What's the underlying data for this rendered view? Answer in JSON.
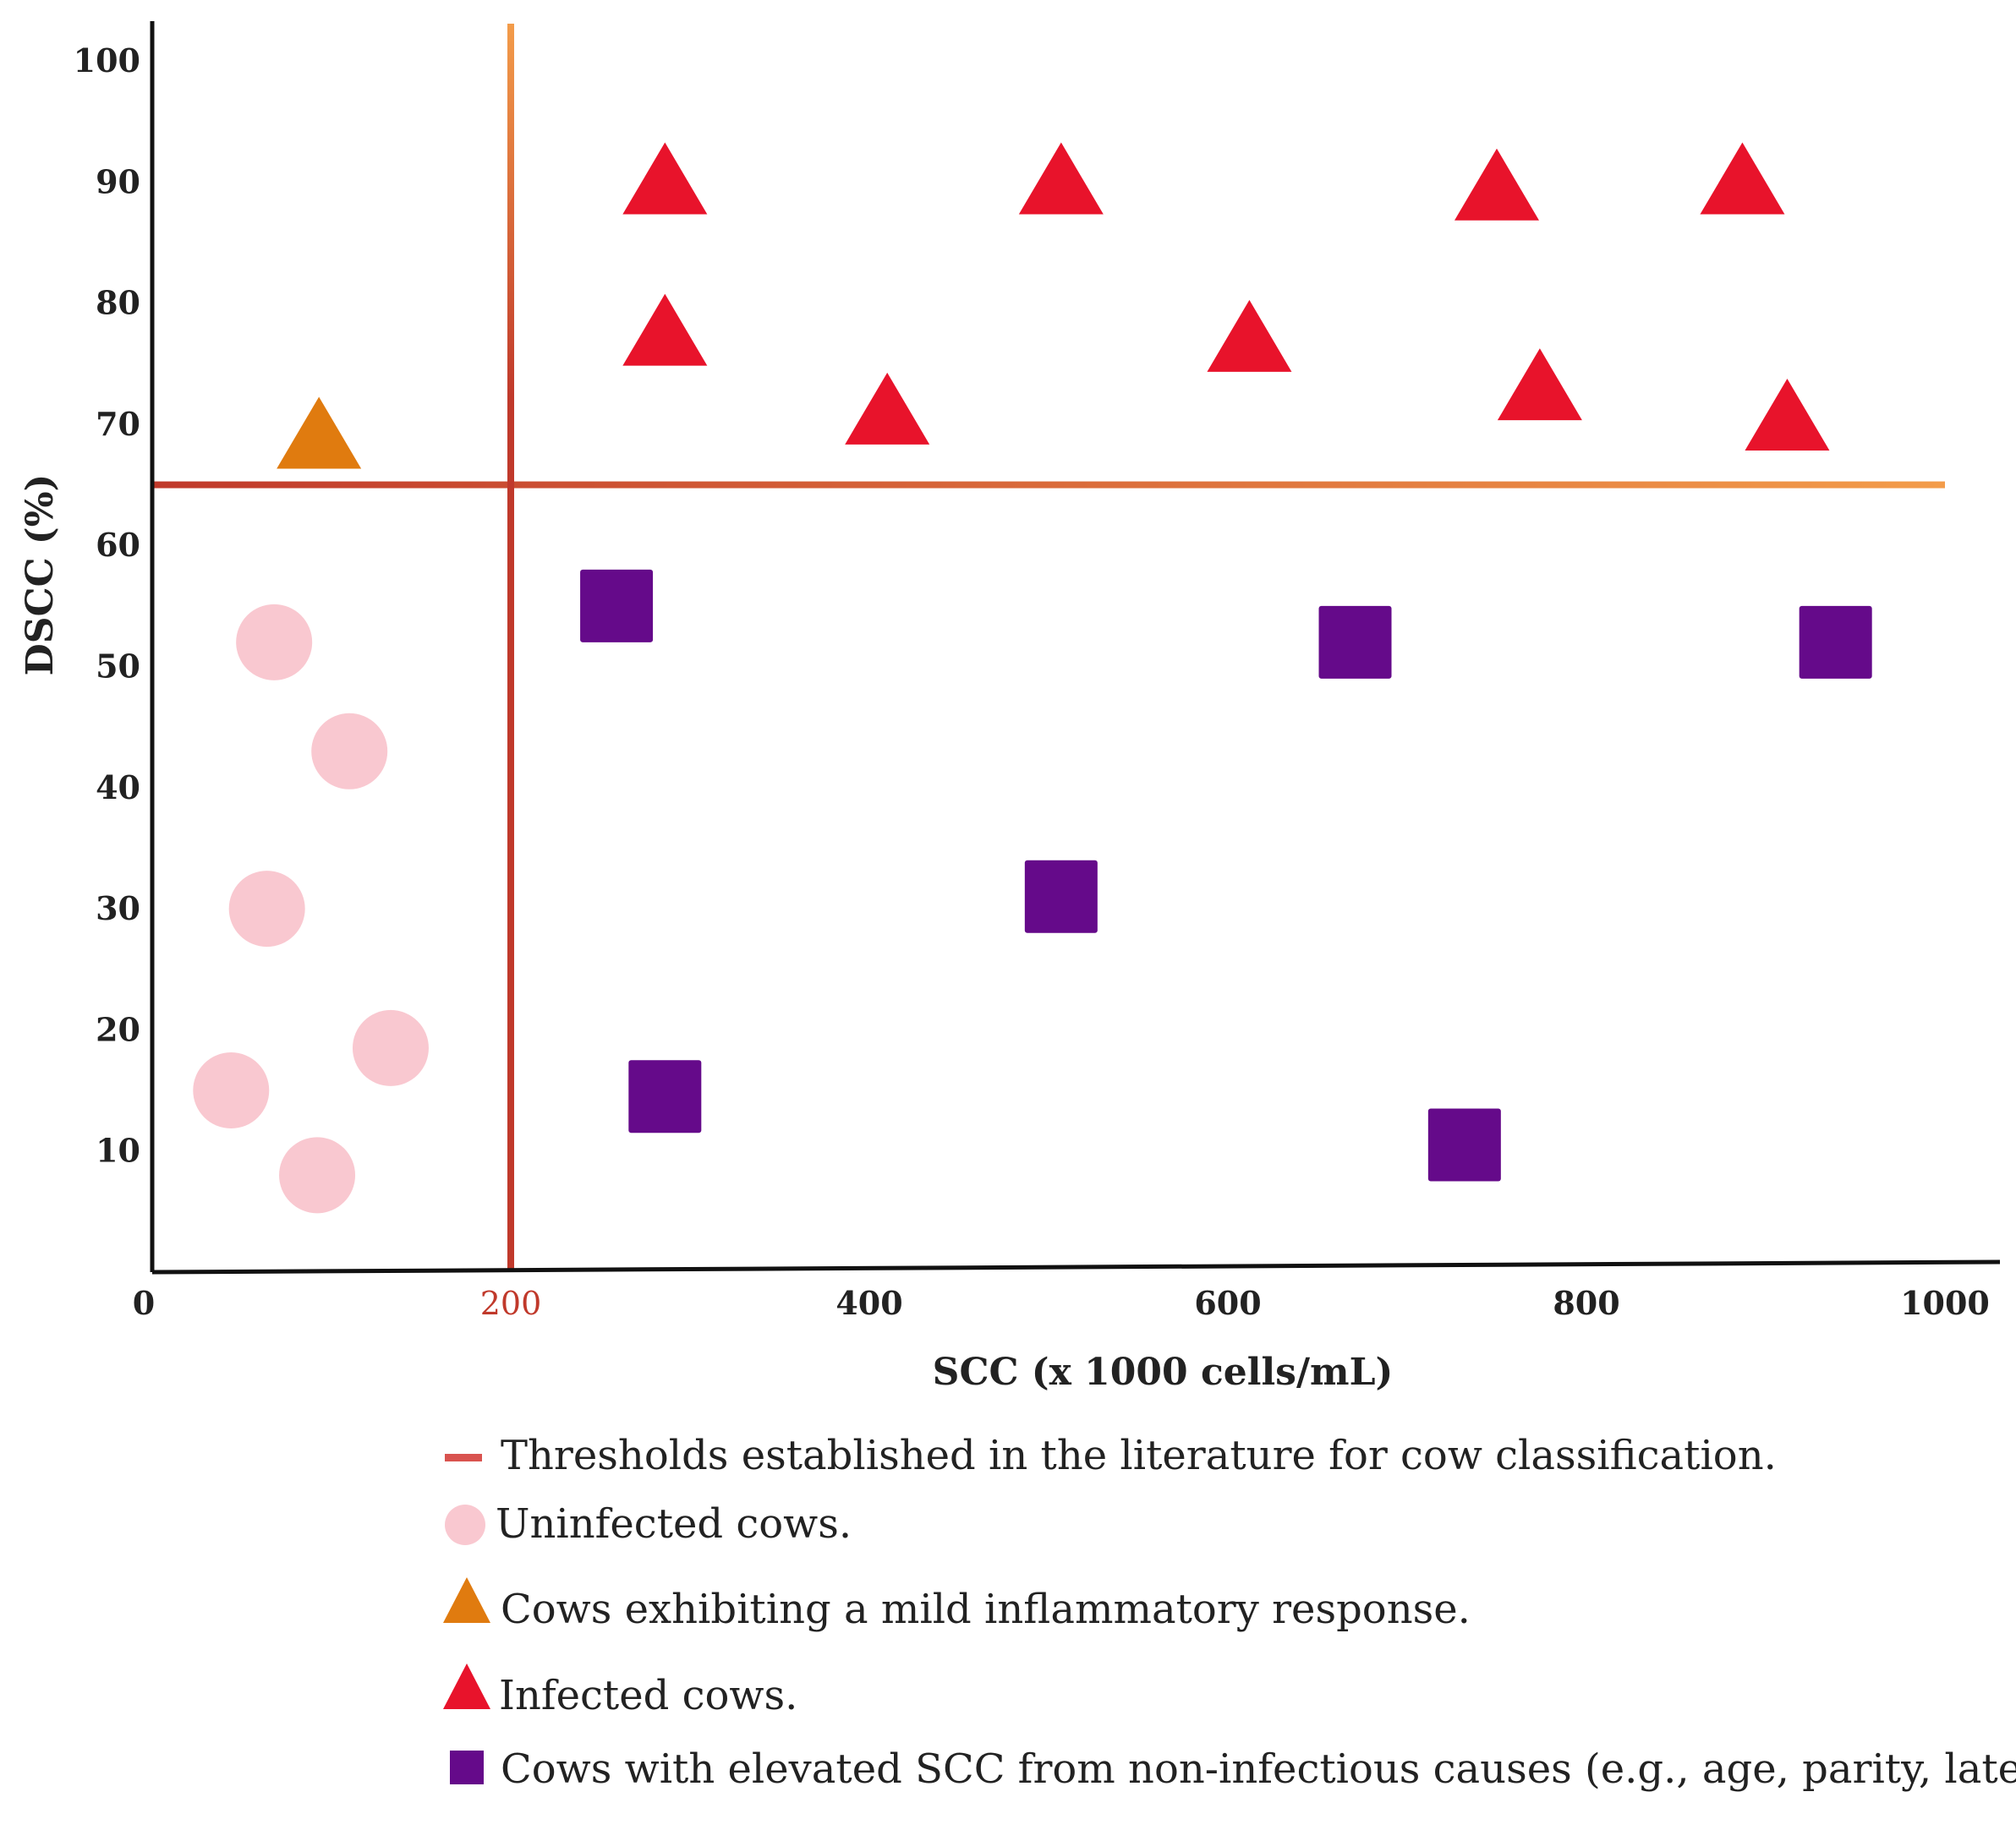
{
  "chart_data": {
    "type": "scatter",
    "title": "",
    "xlabel": "SCC (x 1000 cells/mL)",
    "ylabel": "DSCC (%)",
    "xlim": [
      0,
      1000
    ],
    "ylim": [
      0,
      100
    ],
    "x_ticks": [
      {
        "value": 0,
        "label": "0",
        "highlight": false
      },
      {
        "value": 200,
        "label": "200",
        "highlight": true
      },
      {
        "value": 400,
        "label": "400",
        "highlight": false
      },
      {
        "value": 600,
        "label": "600",
        "highlight": false
      },
      {
        "value": 800,
        "label": "800",
        "highlight": false
      },
      {
        "value": 1000,
        "label": "1000",
        "highlight": false
      }
    ],
    "y_ticks": [
      {
        "value": 10,
        "label": "10"
      },
      {
        "value": 20,
        "label": "20"
      },
      {
        "value": 30,
        "label": "30"
      },
      {
        "value": 40,
        "label": "40"
      },
      {
        "value": 50,
        "label": "50"
      },
      {
        "value": 60,
        "label": "60"
      },
      {
        "value": 70,
        "label": "70"
      },
      {
        "value": 80,
        "label": "80"
      },
      {
        "value": 90,
        "label": "90"
      },
      {
        "value": 100,
        "label": "100"
      }
    ],
    "grid": false,
    "thresholds": {
      "x": 200,
      "y": 65,
      "label": "Thresholds established in the literature for cow classification.",
      "color": "#d9534f",
      "line_colors": [
        "#c0392b",
        "#f39c4a"
      ]
    },
    "series": [
      {
        "name": "Uninfected cows.",
        "marker": "circle",
        "color": "#f9c8d0",
        "points": [
          {
            "x": 68,
            "y": 52
          },
          {
            "x": 110,
            "y": 43
          },
          {
            "x": 64,
            "y": 30
          },
          {
            "x": 133,
            "y": 18.5
          },
          {
            "x": 44,
            "y": 15
          },
          {
            "x": 92,
            "y": 8
          }
        ]
      },
      {
        "name": "Cows exhibiting a mild inflammatory response.",
        "marker": "triangle",
        "color": "#e07b0f",
        "points": [
          {
            "x": 93,
            "y": 69
          }
        ]
      },
      {
        "name": "Infected cows.",
        "marker": "triangle",
        "color": "#e8132b",
        "points": [
          {
            "x": 286,
            "y": 90
          },
          {
            "x": 507,
            "y": 90
          },
          {
            "x": 750,
            "y": 89.5
          },
          {
            "x": 887,
            "y": 90
          },
          {
            "x": 286,
            "y": 77.5
          },
          {
            "x": 612,
            "y": 77
          },
          {
            "x": 410,
            "y": 71
          },
          {
            "x": 774,
            "y": 73
          },
          {
            "x": 912,
            "y": 70.5
          }
        ]
      },
      {
        "name": "Cows with elevated SCC from non-infectious causes (e.g., age, parity, late lactation)",
        "marker": "square",
        "color": "#650a8a",
        "points": [
          {
            "x": 259,
            "y": 55
          },
          {
            "x": 671,
            "y": 52
          },
          {
            "x": 939,
            "y": 52
          },
          {
            "x": 507,
            "y": 31
          },
          {
            "x": 286,
            "y": 14.5
          },
          {
            "x": 732,
            "y": 10.5
          }
        ]
      }
    ],
    "legend_position": "bottom"
  }
}
